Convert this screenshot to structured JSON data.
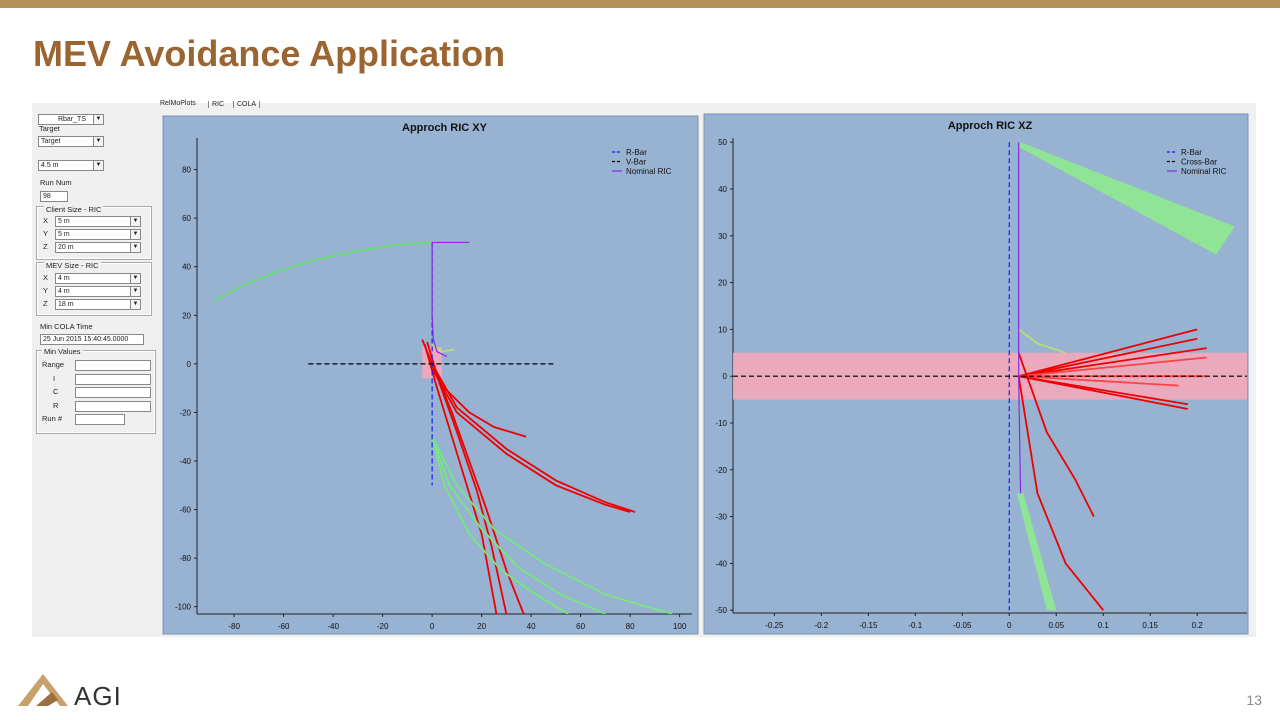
{
  "slide": {
    "title": "MEV Avoidance Application",
    "logo_text": "AGI",
    "page_number": "13"
  },
  "tabs": [
    "RelMoPlots",
    "RIC",
    "COLA"
  ],
  "panel": {
    "combo_1": "Rbar_TS",
    "target_label": "Target",
    "target_value": "Target",
    "range_value": "4.5 m",
    "run_num_label": "Run Num",
    "run_num_value": "98",
    "client_size": {
      "legend": "Client Size - RIC",
      "rows": [
        {
          "axis": "X",
          "value": "5 m"
        },
        {
          "axis": "Y",
          "value": "5 m"
        },
        {
          "axis": "Z",
          "value": "20 m"
        }
      ]
    },
    "mev_size": {
      "legend": "MEV Size - RIC",
      "rows": [
        {
          "axis": "X",
          "value": "4 m"
        },
        {
          "axis": "Y",
          "value": "4 m"
        },
        {
          "axis": "Z",
          "value": "18 m"
        }
      ]
    },
    "min_cola_label": "Min COLA Time",
    "min_cola_value": "25 Jun 2015 15:40:45.0000",
    "min_values": {
      "legend": "Min Values",
      "labels": [
        "Range",
        "I",
        "C",
        "R",
        "Run #"
      ]
    }
  },
  "charts": [
    {
      "type": "line",
      "title": "Approch RIC XY",
      "xlim": [
        -95,
        105
      ],
      "ylim": [
        -103,
        93
      ],
      "xticks": [
        -80,
        -60,
        -40,
        -20,
        0,
        20,
        40,
        60,
        80,
        100
      ],
      "yticks": [
        -100,
        -80,
        -60,
        -40,
        -20,
        0,
        20,
        40,
        60,
        80
      ],
      "legend": "top-right",
      "areas": [
        {
          "color": "#f4a7bb",
          "x": [
            -4,
            4,
            4,
            -4
          ],
          "y": [
            7,
            7,
            -6,
            -6
          ]
        }
      ],
      "series": [
        {
          "color": "#66e070",
          "x": [
            -88,
            -75,
            -60,
            -45,
            -30,
            -15,
            0
          ],
          "y": [
            26,
            33,
            39,
            43.5,
            46.5,
            49,
            50
          ]
        },
        {
          "color": "#ee0000",
          "x": [
            -4,
            0,
            8,
            15,
            22,
            30,
            37
          ],
          "y": [
            10,
            0,
            -20,
            -40,
            -60,
            -85,
            -103
          ]
        },
        {
          "color": "#ee0000",
          "x": [
            -3,
            2,
            8,
            14,
            20,
            26
          ],
          "y": [
            8,
            -10,
            -30,
            -50,
            -70,
            -103
          ]
        },
        {
          "color": "#ee0000",
          "x": [
            -2,
            3,
            10,
            18,
            24,
            30
          ],
          "y": [
            9,
            -8,
            -28,
            -52,
            -75,
            -103
          ]
        },
        {
          "color": "#ee0000",
          "x": [
            0,
            5,
            15,
            25,
            38
          ],
          "y": [
            0,
            -10,
            -20,
            -26,
            -30
          ]
        },
        {
          "color": "#ee0000",
          "x": [
            0,
            10,
            30,
            50,
            70,
            82
          ],
          "y": [
            0,
            -18,
            -35,
            -48,
            -57,
            -61
          ]
        },
        {
          "color": "#ee0000",
          "x": [
            0,
            10,
            30,
            50,
            70,
            80
          ],
          "y": [
            -2,
            -20,
            -37,
            -50,
            -58,
            -61
          ]
        },
        {
          "color": "#74e87c",
          "x": [
            0,
            5,
            15,
            28,
            42,
            55
          ],
          "y": [
            -30,
            -50,
            -70,
            -85,
            -95,
            -103
          ]
        },
        {
          "color": "#74e87c",
          "x": [
            0,
            7,
            20,
            35,
            52,
            70
          ],
          "y": [
            -30,
            -50,
            -68,
            -84,
            -95,
            -103
          ]
        },
        {
          "color": "#74e87c",
          "x": [
            0,
            10,
            25,
            45,
            70,
            97
          ],
          "y": [
            -30,
            -50,
            -68,
            -82,
            -95,
            -103
          ]
        },
        {
          "color": "#b6e070",
          "x": [
            0,
            4,
            9
          ],
          "y": [
            8,
            5,
            6
          ]
        },
        {
          "name": "R-Bar",
          "color": "#1a1aff",
          "style": "dashed",
          "x": [
            0,
            0
          ],
          "y": [
            50,
            -50
          ]
        },
        {
          "name": "V-Bar",
          "color": "#000000",
          "style": "dashed",
          "x": [
            -50,
            50
          ],
          "y": [
            0,
            0
          ]
        },
        {
          "name": "Nominal RIC",
          "color": "#8a2be2",
          "x": [
            15,
            0,
            0,
            0.5,
            2,
            6
          ],
          "y": [
            50,
            50,
            20,
            10,
            5,
            3
          ]
        }
      ]
    },
    {
      "type": "line",
      "title": "Approch RIC XZ",
      "xlim": [
        -0.294,
        0.253
      ],
      "ylim": [
        -50.6,
        50.9
      ],
      "xticks": [
        -0.25,
        -0.2,
        -0.15,
        -0.1,
        -0.05,
        0,
        0.05,
        0.1,
        0.15,
        0.2
      ],
      "yticks": [
        -50,
        -40,
        -30,
        -20,
        -10,
        0,
        10,
        20,
        30,
        40,
        50
      ],
      "legend": "top-right",
      "areas": [
        {
          "color": "#f4a7bb",
          "x": [
            -0.294,
            0.253,
            0.253,
            -0.294
          ],
          "y": [
            5,
            5,
            -5,
            -5
          ]
        },
        {
          "color": "#8eea8e",
          "x": [
            0.012,
            0.24,
            0.22,
            0.01
          ],
          "y": [
            50,
            32,
            26,
            49
          ]
        },
        {
          "color": "#8eea8e",
          "x": [
            0.008,
            0.015,
            0.05,
            0.04
          ],
          "y": [
            -25,
            -25,
            -50,
            -50
          ]
        }
      ],
      "series": [
        {
          "color": "#ee0000",
          "x": [
            0.01,
            0.2
          ],
          "y": [
            0,
            10
          ]
        },
        {
          "color": "#ee0000",
          "x": [
            0.01,
            0.2
          ],
          "y": [
            0,
            8
          ]
        },
        {
          "color": "#ee0000",
          "x": [
            0.01,
            0.21
          ],
          "y": [
            0,
            6
          ]
        },
        {
          "color": "#ff4444",
          "x": [
            0.01,
            0.21
          ],
          "y": [
            0,
            4
          ]
        },
        {
          "color": "#ff4444",
          "x": [
            0.01,
            0.21
          ],
          "y": [
            0,
            0
          ]
        },
        {
          "color": "#ff4444",
          "x": [
            0.01,
            0.18
          ],
          "y": [
            0,
            -2
          ]
        },
        {
          "color": "#ee0000",
          "x": [
            0.01,
            0.19
          ],
          "y": [
            0,
            -6
          ]
        },
        {
          "color": "#ee0000",
          "x": [
            0.01,
            0.19
          ],
          "y": [
            0,
            -7
          ]
        },
        {
          "color": "#ee0000",
          "x": [
            0.01,
            0.03,
            0.06,
            0.1
          ],
          "y": [
            0,
            -25,
            -40,
            -50
          ]
        },
        {
          "color": "#ee0000",
          "x": [
            0.01,
            0.04,
            0.07,
            0.09
          ],
          "y": [
            5,
            -12,
            -22,
            -30
          ]
        },
        {
          "color": "#b6e070",
          "x": [
            0.01,
            0.03,
            0.06
          ],
          "y": [
            10,
            7,
            5
          ]
        },
        {
          "name": "R-Bar",
          "color": "#1a1aff",
          "style": "dashed",
          "x": [
            0,
            0
          ],
          "y": [
            50,
            -50
          ]
        },
        {
          "name": "Cross-Bar",
          "color": "#000000",
          "style": "dashed",
          "x": [
            -0.294,
            0.253
          ],
          "y": [
            0,
            0
          ]
        },
        {
          "name": "Nominal RIC",
          "color": "#8a2be2",
          "x": [
            0.01,
            0.01,
            0.012
          ],
          "y": [
            50,
            0,
            -25
          ]
        }
      ]
    }
  ]
}
